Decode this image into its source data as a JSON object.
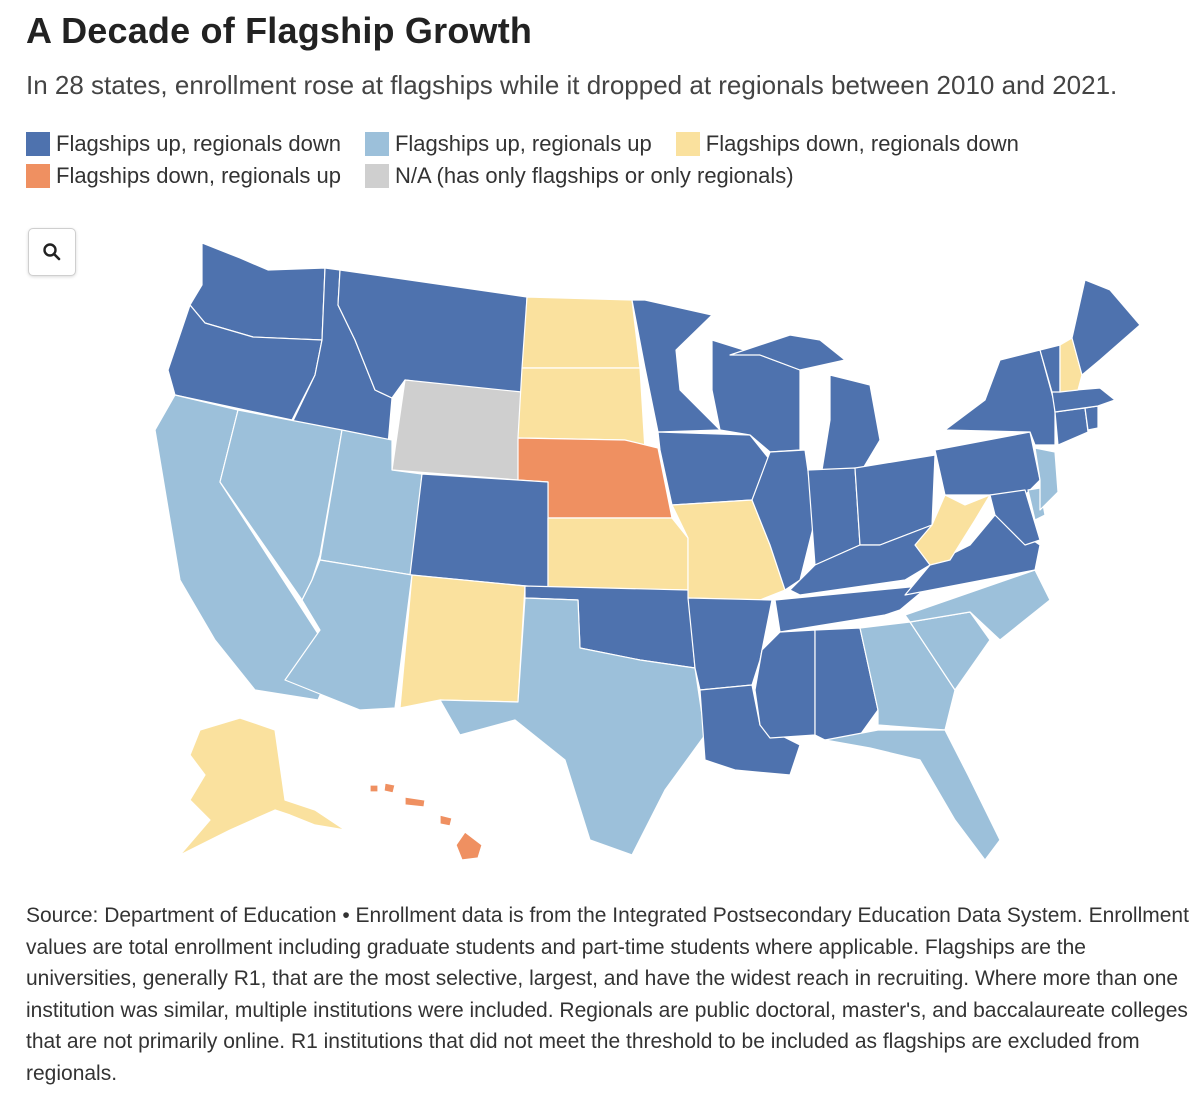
{
  "title": "A Decade of Flagship Growth",
  "subtitle": "In 28 states, enrollment rose at flagships while it dropped at regionals between 2010 and 2021.",
  "colors": {
    "up_down": "#4e72ae",
    "up_up": "#9cc0da",
    "down_down": "#fae19e",
    "down_up": "#ef9061",
    "na": "#cfcfcf"
  },
  "legend": [
    {
      "key": "up_down",
      "label": "Flagships up, regionals down"
    },
    {
      "key": "up_up",
      "label": "Flagships up, regionals up"
    },
    {
      "key": "down_down",
      "label": "Flagships down, regionals down"
    },
    {
      "key": "down_up",
      "label": "Flagships down, regionals up"
    },
    {
      "key": "na",
      "label": "N/A (has only flagships or only regionals)"
    }
  ],
  "zoom_icon": "search-icon",
  "source": "Source: Department of Education • Enrollment data is from the Integrated Postsecondary Education Data System. Enrollment values are total enrollment including graduate students and part-time students where applicable. Flagships are the universities, generally R1, that are the most selective, largest, and have the widest reach in recruiting. Where more than one institution was similar, multiple institutions were included. Regionals are public doctoral, master's, and baccalaureate colleges that are not primarily online. R1 institutions that did not meet the threshold to be included as flagships are excluded from regionals.",
  "states": {
    "WA": "up_down",
    "OR": "up_down",
    "ID": "up_down",
    "MT": "up_down",
    "ND": "down_down",
    "SD": "down_down",
    "WY": "na",
    "NE": "down_up",
    "CA": "up_up",
    "NV": "up_up",
    "UT": "up_up",
    "CO": "up_down",
    "AZ": "up_up",
    "NM": "down_down",
    "KS": "down_down",
    "OK": "up_down",
    "TX": "up_up",
    "MN": "up_down",
    "IA": "up_down",
    "MO": "down_down",
    "AR": "up_down",
    "LA": "up_down",
    "WI": "up_down",
    "IL": "up_down",
    "MI": "up_down",
    "IN": "up_down",
    "OH": "up_down",
    "KY": "up_down",
    "TN": "up_down",
    "MS": "up_down",
    "AL": "up_down",
    "GA": "up_up",
    "FL": "up_up",
    "SC": "up_up",
    "NC": "up_up",
    "VA": "up_down",
    "WV": "down_down",
    "MD": "up_down",
    "DE": "up_up",
    "NJ": "up_up",
    "PA": "up_down",
    "NY": "up_down",
    "CT": "up_down",
    "RI": "up_down",
    "MA": "up_down",
    "VT": "up_down",
    "NH": "down_down",
    "ME": "up_down",
    "AK": "down_down",
    "HI": "down_up"
  }
}
